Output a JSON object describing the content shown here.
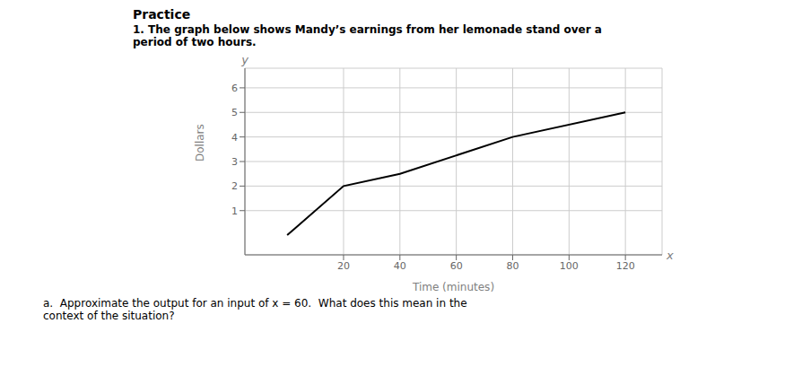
{
  "chart_data": {
    "type": "line",
    "title": "Practice",
    "subtitle": "1. The graph below shows Mandy’s earnings from her lemonade stand over a\nperiod of two hours.",
    "x_label": "Time (minutes)",
    "y_label": "Dollars",
    "x": [
      0,
      20,
      40,
      80,
      120
    ],
    "values": [
      0,
      2.0,
      2.5,
      4.0,
      5.0
    ],
    "color": "#000000",
    "xlim": [
      -15,
      133
    ],
    "ylim": [
      -0.8,
      6.8
    ],
    "xticks": [
      20,
      40,
      60,
      80,
      100,
      120
    ],
    "yticks": [
      1,
      2,
      3,
      4,
      5,
      6
    ],
    "grid": true,
    "annotations": [
      "x",
      "y",
      "a.  Approximate the output for an input of x = 60.  What does this mean in the\ncontext of the situation?"
    ]
  }
}
